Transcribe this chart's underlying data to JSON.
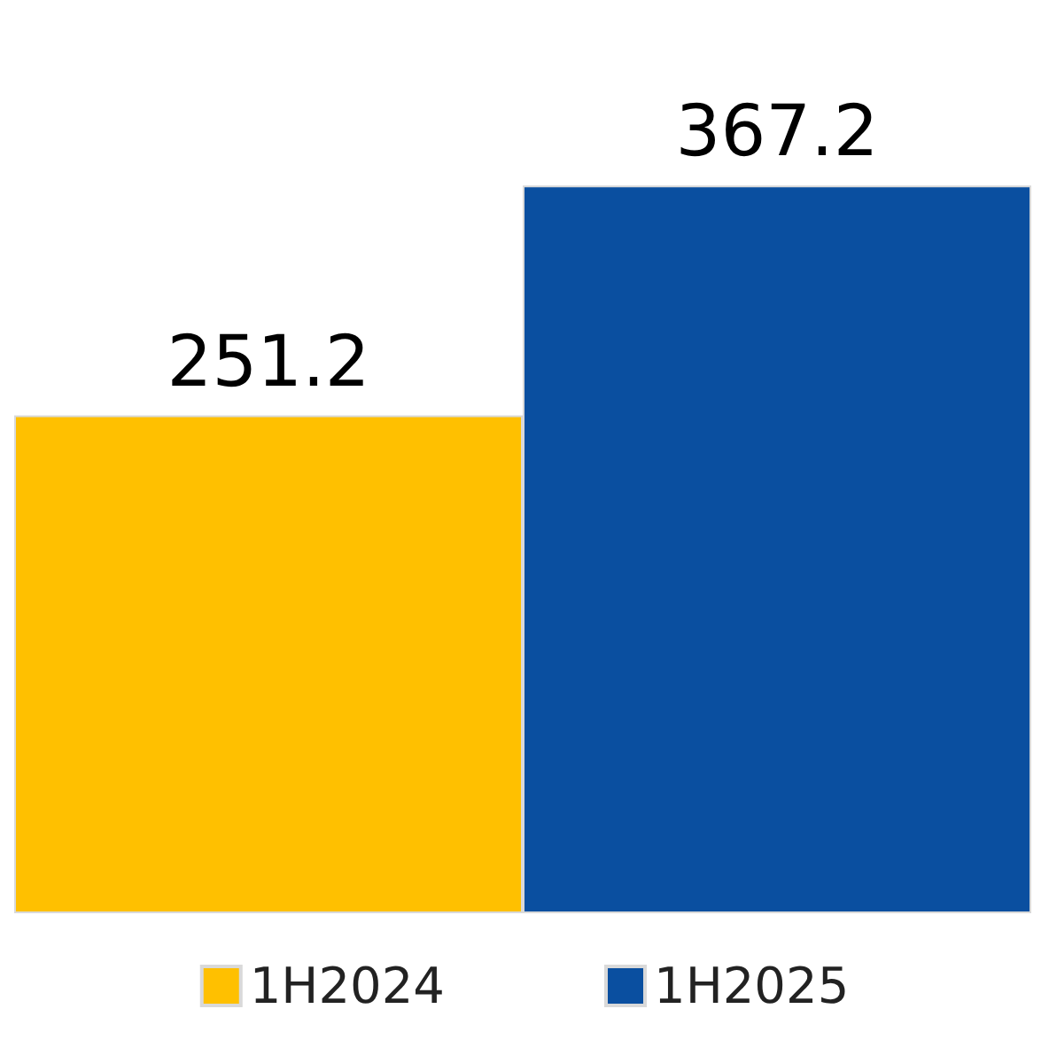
{
  "chart_data": {
    "type": "bar",
    "categories": [
      null
    ],
    "series": [
      {
        "name": "1H2024",
        "color": "#ffc000",
        "values": [
          251.2
        ]
      },
      {
        "name": "1H2025",
        "color": "#0a4fa0",
        "values": [
          367.2
        ]
      }
    ],
    "data_labels": true,
    "legend": "bottom"
  }
}
